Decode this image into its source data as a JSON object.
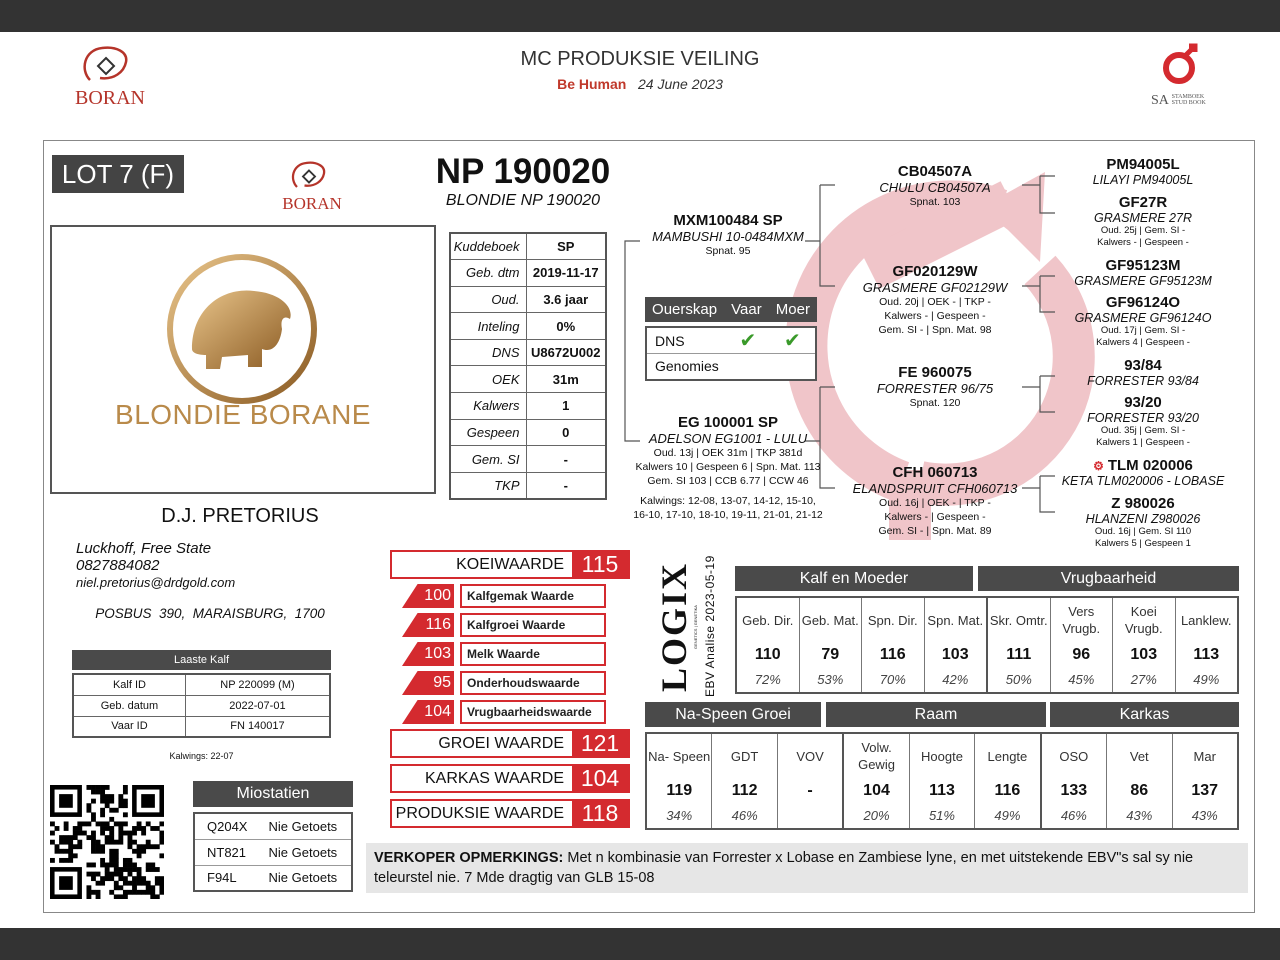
{
  "header": {
    "title": "MC PRODUKSIE VEILING",
    "org": "Be Human",
    "date": "24 June 2023",
    "logo_left": "BORAN",
    "logo_right": "SA",
    "logo_right_sub": "STAMBOEK STUD BOOK"
  },
  "lot": "LOT 7 (F)",
  "animal": {
    "id": "NP 190020",
    "name": "BLONDIE NP 190020",
    "photo_text": "BLONDIE BORANE"
  },
  "details": [
    {
      "label": "Kuddeboek",
      "value": "SP"
    },
    {
      "label": "Geb. dtm",
      "value": "2019-11-17"
    },
    {
      "label": "Oud.",
      "value": "3.6 jaar"
    },
    {
      "label": "Inteling",
      "value": "0%"
    },
    {
      "label": "DNS",
      "value": "U8672U002"
    },
    {
      "label": "OEK",
      "value": "31m"
    },
    {
      "label": "Kalwers",
      "value": "1"
    },
    {
      "label": "Gespeen",
      "value": "0"
    },
    {
      "label": "Gem. SI",
      "value": "-"
    },
    {
      "label": "TKP",
      "value": "-"
    }
  ],
  "owner": {
    "name": "D.J. PRETORIUS",
    "location": "Luckhoff, Free State",
    "phone": "0827884082",
    "email": "niel.pretorius@drdgold.com",
    "address": "POSBUS  390,  MARAISBURG,  1700"
  },
  "last_calf": {
    "title": "Laaste Kalf",
    "rows": [
      {
        "label": "Kalf ID",
        "value": "NP 220099 (M)"
      },
      {
        "label": "Geb. datum",
        "value": "2022-07-01"
      },
      {
        "label": "Vaar ID",
        "value": "FN 140017"
      }
    ],
    "note": "Kalwings: 22-07"
  },
  "myostatin": {
    "title": "Miostatien",
    "rows": [
      {
        "code": "Q204X",
        "status": "Nie Getoets"
      },
      {
        "code": "NT821",
        "status": "Nie Getoets"
      },
      {
        "code": "F94L",
        "status": "Nie Getoets"
      }
    ]
  },
  "parentage": {
    "headers": [
      "Ouerskap",
      "Vaar",
      "Moer"
    ],
    "rows": [
      {
        "label": "DNS",
        "vaar": "✔",
        "moer": "✔"
      },
      {
        "label": "Genomies",
        "vaar": "",
        "moer": ""
      }
    ],
    "check_color": "#3a9a2a"
  },
  "pedigree": [
    {
      "id": "MXM100484 SP",
      "name": "MAMBUSHI 10-0484MXM",
      "lines": [
        "Spnat. 95"
      ]
    },
    {
      "id": "EG 100001 SP",
      "name": "ADELSON EG1001 - LULU",
      "lines": [
        "Oud. 13j | OEK 31m | TKP 381d",
        "Kalwers 10 | Gespeen 6 | Spn. Mat. 113",
        "Gem. SI 103 | CCB 6.77 | CCW 46",
        "",
        "Kalwings: 12-08, 13-07, 14-12, 15-10,",
        "16-10, 17-10, 18-10, 19-11, 21-01, 21-12"
      ]
    },
    {
      "id": "CB04507A",
      "name": "CHULU CB04507A",
      "lines": [
        "Spnat. 103"
      ]
    },
    {
      "id": "GF020129W",
      "name": "GRASMERE GF02129W",
      "lines": [
        "Oud. 20j | OEK - | TKP -",
        "Kalwers - | Gespeen -",
        "Gem. SI - | Spn. Mat. 98"
      ]
    },
    {
      "id": "FE 960075",
      "name": "FORRESTER 96/75",
      "lines": [
        "Spnat. 120"
      ]
    },
    {
      "id": "CFH 060713",
      "name": "ELANDSPRUIT CFH060713",
      "lines": [
        "Oud. 16j | OEK - | TKP -",
        "Kalwers - | Gespeen -",
        "Gem. SI - | Spn. Mat. 89"
      ]
    },
    {
      "id": "PM94005L",
      "name": "LILAYI PM94005L",
      "lines": []
    },
    {
      "id": "GF27R",
      "name": "GRASMERE 27R",
      "lines": [
        "Oud. 25j | Gem. SI -",
        "Kalwers - | Gespeen -"
      ]
    },
    {
      "id": "GF95123M",
      "name": "GRASMERE GF95123M",
      "lines": []
    },
    {
      "id": "GF96124O",
      "name": "GRASMERE GF96124O",
      "lines": [
        "Oud. 17j | Gem. SI -",
        "Kalwers 4 | Gespeen -"
      ]
    },
    {
      "id": "93/84",
      "name": "FORRESTER 93/84",
      "lines": []
    },
    {
      "id": "93/20",
      "name": "FORRESTER 93/20",
      "lines": [
        "Oud. 35j | Gem. SI -",
        "Kalwers 1 | Gespeen -"
      ]
    },
    {
      "id": "TLM 020006",
      "name": "KETA TLM020006 - LOBASE",
      "lines": []
    },
    {
      "id": "Z 980026",
      "name": "HLANZENI Z980026",
      "lines": [
        "Oud. 16j | Gem. SI 110",
        "Kalwers 5 | Gespeen 1"
      ]
    }
  ],
  "indexes": {
    "koeiwaarde": {
      "label": "KOEIWAARDE",
      "value": "115"
    },
    "sub": [
      {
        "value": "100",
        "label": "Kalfgemak Waarde"
      },
      {
        "value": "116",
        "label": "Kalfgroei Waarde"
      },
      {
        "value": "103",
        "label": "Melk Waarde"
      },
      {
        "value": "95",
        "label": "Onderhoudswaarde"
      },
      {
        "value": "104",
        "label": "Vrugbaarheidswaarde"
      }
    ],
    "groei": {
      "label": "GROEI WAARDE",
      "value": "121"
    },
    "karkas": {
      "label": "KARKAS WAARDE",
      "value": "104"
    },
    "produksie": {
      "label": "PRODUKSIE WAARDE",
      "value": "118"
    },
    "accent": "#d42a2f"
  },
  "ebv": {
    "logo": "LOGIX",
    "logo_sub": "GENETICS | GENETIKA",
    "analysis": "EBV Analise 2023-05-19",
    "upper_groups": [
      {
        "title": "Kalf en Moeder",
        "cols": [
          {
            "h": "Geb. Dir.",
            "v": "110",
            "p": "72%"
          },
          {
            "h": "Geb. Mat.",
            "v": "79",
            "p": "53%"
          },
          {
            "h": "Spn. Dir.",
            "v": "116",
            "p": "70%"
          },
          {
            "h": "Spn. Mat.",
            "v": "103",
            "p": "42%"
          }
        ]
      },
      {
        "title": "Vrugbaarheid",
        "cols": [
          {
            "h": "Skr. Omtr.",
            "v": "111",
            "p": "50%"
          },
          {
            "h": "Vers Vrugb.",
            "v": "96",
            "p": "45%"
          },
          {
            "h": "Koei Vrugb.",
            "v": "103",
            "p": "27%"
          },
          {
            "h": "Lanklew.",
            "v": "113",
            "p": "49%"
          }
        ]
      }
    ],
    "lower_groups": [
      {
        "title": "Na-Speen Groei",
        "cols": [
          {
            "h": "Na- Speen",
            "v": "119",
            "p": "34%"
          },
          {
            "h": "GDT",
            "v": "112",
            "p": "46%"
          },
          {
            "h": "VOV",
            "v": "-",
            "p": ""
          }
        ]
      },
      {
        "title": "Raam",
        "cols": [
          {
            "h": "Volw. Gewig",
            "v": "104",
            "p": "20%"
          },
          {
            "h": "Hoogte",
            "v": "113",
            "p": "51%"
          },
          {
            "h": "Lengte",
            "v": "116",
            "p": "49%"
          }
        ]
      },
      {
        "title": "Karkas",
        "cols": [
          {
            "h": "OSO",
            "v": "133",
            "p": "46%"
          },
          {
            "h": "Vet",
            "v": "86",
            "p": "43%"
          },
          {
            "h": "Mar",
            "v": "137",
            "p": "43%"
          }
        ]
      }
    ]
  },
  "remarks": {
    "label": "VERKOPER OPMERKINGS:",
    "text": " Met n kombinasie van Forrester x Lobase en Zambiese lyne, en met uitstekende EBV\"s sal sy nie teleurstel nie. 7 Mde dragtig van GLB 15-08"
  }
}
